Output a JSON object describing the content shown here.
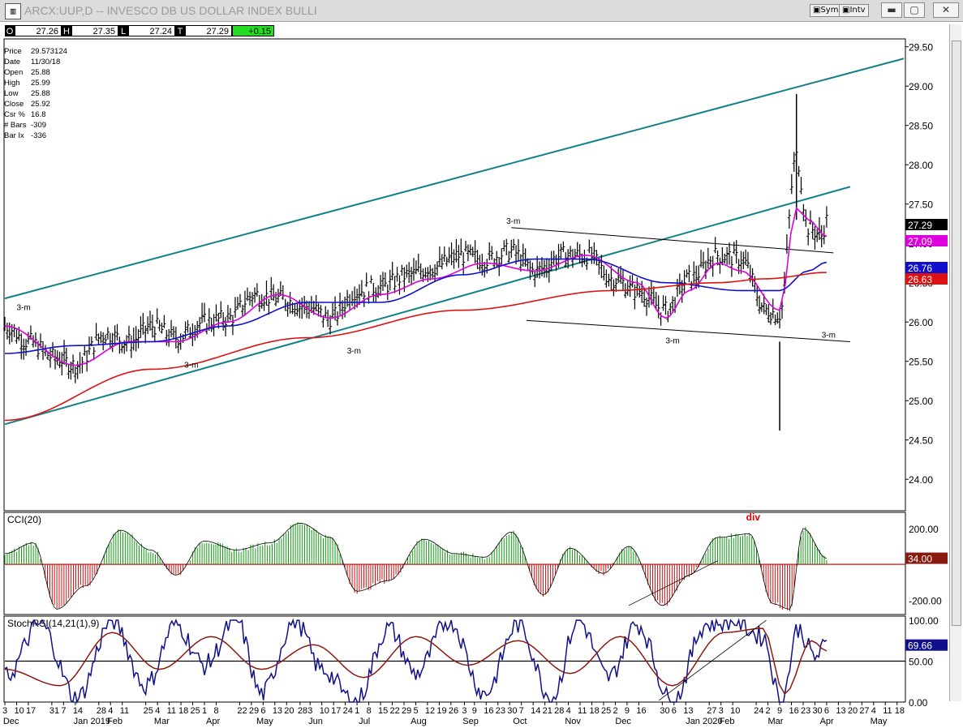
{
  "window": {
    "icon_glyph": "▥",
    "title": "ARCX:UUP,D -- INVESCO DB US DOLLAR INDEX BULLI",
    "sym_label": "Sym",
    "intv_label": "Intv",
    "minimize_glyph": "▬",
    "restore_glyph": "▢",
    "close_glyph": "✕"
  },
  "ohlc_bar": {
    "o_key": "O",
    "o_val": "27.26",
    "h_key": "H",
    "h_val": "27.35",
    "l_key": "L",
    "l_val": "27.24",
    "t_key": "T",
    "t_val": "27.29",
    "change": "+0.15"
  },
  "info_panel": [
    {
      "label": "Price",
      "value": "29.573124"
    },
    {
      "label": "Date",
      "value": "11/30/18"
    },
    {
      "label": "Open",
      "value": "25.88"
    },
    {
      "label": "High",
      "value": "25.99"
    },
    {
      "label": "Low",
      "value": "25.88"
    },
    {
      "label": "Close",
      "value": "25.92"
    },
    {
      "label": "Csr %",
      "value": "16.8"
    },
    {
      "label": "# Bars",
      "value": "-309"
    },
    {
      "label": "Bar Ix",
      "value": "-336"
    }
  ],
  "colors": {
    "price_bars": "#000000",
    "ma_fast": "#dd00dd",
    "ma_mid": "#1010cc",
    "ma_slow": "#dd1111",
    "channel": "#11808a",
    "cci_pos": "#119911",
    "cci_neg": "#cc1111",
    "stoch": "#10108a",
    "stoch_signal": "#8a1a10"
  },
  "chart_data": [
    {
      "type": "line",
      "panel": "price",
      "title": "ARCX:UUP,D -- INVESCO DB US DOLLAR INDEX BULLI",
      "ylim": [
        23.6,
        29.6
      ],
      "y_ticks": [
        "24.00",
        "24.50",
        "25.00",
        "25.50",
        "26.00",
        "26.50",
        "27.00",
        "27.50",
        "28.00",
        "28.50",
        "29.00",
        "29.50"
      ],
      "x_ticks": [
        "3",
        "10",
        "17",
        "31",
        "7",
        "14",
        "28",
        "4",
        "11",
        "25",
        "4",
        "11",
        "18",
        "25",
        "1",
        "8",
        "22",
        "29",
        "6",
        "13",
        "20",
        "28",
        "3",
        "10",
        "17",
        "24",
        "1",
        "8",
        "15",
        "22",
        "29",
        "5",
        "12",
        "19",
        "26",
        "3",
        "9",
        "16",
        "23",
        "30",
        "7",
        "14",
        "21",
        "28",
        "4",
        "11",
        "18",
        "25",
        "2",
        "9",
        "16",
        "30",
        "6",
        "13",
        "27",
        "3",
        "10",
        "24",
        "2",
        "9",
        "16",
        "23",
        "30",
        "6",
        "13",
        "20",
        "27",
        "4",
        "11",
        "18"
      ],
      "x_months": [
        "Dec",
        "Jan 2019",
        "Feb",
        "Mar",
        "Apr",
        "May",
        "Jun",
        "Jul",
        "Aug",
        "Sep",
        "Oct",
        "Nov",
        "Dec",
        "Jan 2020",
        "Feb",
        "Mar",
        "Apr",
        "May"
      ],
      "x_domain": [
        "2018-12-03",
        "2020-05-22"
      ],
      "series": [
        {
          "name": "UUP daily bars",
          "kind": "ohlc",
          "x": [
            "2018-12-03",
            "2018-12-17",
            "2019-01-02",
            "2019-01-14",
            "2019-02-01",
            "2019-02-15",
            "2019-03-01",
            "2019-03-15",
            "2019-04-01",
            "2019-04-15",
            "2019-05-01",
            "2019-05-15",
            "2019-06-01",
            "2019-06-15",
            "2019-07-01",
            "2019-07-15",
            "2019-08-01",
            "2019-08-15",
            "2019-09-01",
            "2019-09-15",
            "2019-10-01",
            "2019-10-15",
            "2019-11-01",
            "2019-11-15",
            "2019-12-01",
            "2019-12-15",
            "2020-01-01",
            "2020-01-15",
            "2020-02-01",
            "2020-02-15",
            "2020-03-01",
            "2020-03-09",
            "2020-03-19",
            "2020-03-26",
            "2020-04-03",
            "2020-04-06"
          ],
          "close": [
            25.95,
            25.75,
            25.55,
            25.45,
            25.85,
            25.75,
            25.95,
            25.8,
            26.0,
            26.05,
            26.35,
            26.3,
            26.2,
            26.05,
            26.4,
            26.45,
            26.6,
            26.7,
            26.85,
            26.8,
            26.9,
            26.65,
            26.85,
            26.85,
            26.55,
            26.4,
            26.15,
            26.55,
            26.85,
            26.8,
            26.15,
            26.1,
            28.1,
            27.2,
            27.1,
            27.29
          ]
        },
        {
          "name": "fast MA",
          "color": "#dd00dd",
          "x": [
            "2018-12-03",
            "2019-01-14",
            "2019-02-15",
            "2019-03-15",
            "2019-04-15",
            "2019-05-15",
            "2019-06-15",
            "2019-07-15",
            "2019-08-15",
            "2019-09-15",
            "2019-10-15",
            "2019-11-15",
            "2019-12-15",
            "2020-01-01",
            "2020-01-15",
            "2020-02-01",
            "2020-02-15",
            "2020-03-09",
            "2020-03-19",
            "2020-03-26",
            "2020-04-06"
          ],
          "values": [
            25.95,
            25.45,
            25.75,
            25.75,
            26.0,
            26.35,
            26.05,
            26.35,
            26.55,
            26.75,
            26.65,
            26.85,
            26.5,
            26.05,
            26.4,
            26.75,
            26.65,
            26.15,
            27.45,
            27.3,
            27.09
          ]
        },
        {
          "name": "mid MA",
          "color": "#1010cc",
          "x": [
            "2018-12-03",
            "2019-01-14",
            "2019-03-01",
            "2019-04-15",
            "2019-06-01",
            "2019-07-15",
            "2019-09-01",
            "2019-10-15",
            "2019-11-15",
            "2020-01-01",
            "2020-02-15",
            "2020-03-09",
            "2020-03-26",
            "2020-04-06"
          ],
          "values": [
            25.6,
            25.7,
            25.75,
            25.95,
            26.25,
            26.25,
            26.6,
            26.8,
            26.8,
            26.5,
            26.4,
            26.4,
            26.65,
            26.76
          ]
        },
        {
          "name": "slow MA",
          "color": "#dd1111",
          "x": [
            "2018-12-03",
            "2019-03-01",
            "2019-06-01",
            "2019-09-01",
            "2019-12-01",
            "2020-02-01",
            "2020-03-01",
            "2020-04-06"
          ],
          "values": [
            24.75,
            25.4,
            25.8,
            26.15,
            26.4,
            26.5,
            26.55,
            26.63
          ]
        }
      ],
      "trendlines": [
        {
          "color": "#11808a",
          "from": [
            "2018-12-03",
            26.3
          ],
          "to": [
            "2020-05-22",
            29.35
          ]
        },
        {
          "color": "#11808a",
          "from": [
            "2018-12-03",
            24.7
          ],
          "to": [
            "2020-04-20",
            27.72
          ]
        },
        {
          "color": "#000000",
          "from": [
            "2019-10-01",
            27.2
          ],
          "to": [
            "2020-04-10",
            26.88
          ]
        },
        {
          "color": "#000000",
          "from": [
            "2019-10-10",
            26.02
          ],
          "to": [
            "2020-04-20",
            25.75
          ]
        }
      ],
      "annotations": [
        {
          "text": "3-m",
          "x": "2018-12-10",
          "y": 26.15
        },
        {
          "text": "3-m",
          "x": "2019-03-20",
          "y": 25.42
        },
        {
          "text": "3-m",
          "x": "2019-06-25",
          "y": 25.6
        },
        {
          "text": "3-m",
          "x": "2019-09-28",
          "y": 27.25
        },
        {
          "text": "3-m",
          "x": "2020-01-01",
          "y": 25.73
        },
        {
          "text": "3-m",
          "x": "2020-04-03",
          "y": 25.8
        }
      ],
      "last_value_tags": [
        {
          "value": "27.29",
          "bg": "#000000",
          "fg": "#ffffff"
        },
        {
          "value": "27.09",
          "bg": "#dd00dd",
          "fg": "#ffffff"
        },
        {
          "value": "26.76",
          "bg": "#1010cc",
          "fg": "#ffffff"
        },
        {
          "value": "26.63",
          "bg": "#dd1111",
          "fg": "#ffffff"
        }
      ]
    },
    {
      "type": "bar",
      "panel": "cci",
      "title": "CCI(20)",
      "ylim": [
        -280,
        290
      ],
      "y_ticks": [
        "200.00",
        "-200.00"
      ],
      "last_value": "34.00",
      "annotation": {
        "text": "div",
        "color": "#dd0000"
      },
      "x": [
        "2018-12-03",
        "2018-12-20",
        "2019-01-03",
        "2019-01-20",
        "2019-02-10",
        "2019-02-28",
        "2019-03-15",
        "2019-04-01",
        "2019-04-20",
        "2019-05-10",
        "2019-05-28",
        "2019-06-15",
        "2019-07-01",
        "2019-07-20",
        "2019-08-10",
        "2019-08-28",
        "2019-09-15",
        "2019-10-01",
        "2019-10-20",
        "2019-11-05",
        "2019-11-25",
        "2019-12-10",
        "2019-12-30",
        "2020-01-15",
        "2020-02-01",
        "2020-02-20",
        "2020-03-05",
        "2020-03-15",
        "2020-03-23",
        "2020-04-06"
      ],
      "values": [
        60,
        120,
        -250,
        -120,
        190,
        80,
        -60,
        130,
        80,
        120,
        230,
        150,
        -150,
        -90,
        140,
        60,
        40,
        180,
        -170,
        90,
        -50,
        100,
        -230,
        -60,
        150,
        170,
        -220,
        -250,
        200,
        34
      ]
    },
    {
      "type": "line",
      "panel": "stochrsi",
      "title": "StochRSI(14,21(1),9)",
      "ylim": [
        0,
        105
      ],
      "y_ticks": [
        "100.00",
        "50.00",
        "0.00"
      ],
      "last_value": "69.66",
      "series": [
        {
          "name": "",
          "color": "#10108a",
          "x": [
            "2018-12-03",
            "2018-12-24",
            "2019-01-15",
            "2019-02-05",
            "2019-02-25",
            "2019-03-15",
            "2019-04-01",
            "2019-04-20",
            "2019-05-05",
            "2019-05-25",
            "2019-06-10",
            "2019-06-30",
            "2019-07-20",
            "2019-08-05",
            "2019-08-25",
            "2019-09-15",
            "2019-10-05",
            "2019-10-25",
            "2019-11-10",
            "2019-11-28",
            "2019-12-15",
            "2020-01-05",
            "2020-01-25",
            "2020-02-10",
            "2020-02-28",
            "2020-03-10",
            "2020-03-20",
            "2020-03-30",
            "2020-04-06"
          ],
          "values": [
            30,
            95,
            5,
            100,
            20,
            95,
            45,
            100,
            10,
            100,
            40,
            0,
            90,
            35,
            100,
            10,
            95,
            5,
            100,
            30,
            95,
            0,
            95,
            100,
            80,
            0,
            90,
            55,
            69.66
          ]
        },
        {
          "name": "",
          "color": "#8a1a10",
          "x": [
            "2018-12-03",
            "2019-01-05",
            "2019-02-05",
            "2019-03-05",
            "2019-04-05",
            "2019-05-05",
            "2019-06-05",
            "2019-07-05",
            "2019-08-05",
            "2019-09-05",
            "2019-10-05",
            "2019-11-05",
            "2019-12-05",
            "2020-01-05",
            "2020-02-05",
            "2020-02-28",
            "2020-03-12",
            "2020-03-28",
            "2020-04-06"
          ],
          "values": [
            40,
            20,
            85,
            40,
            80,
            40,
            70,
            30,
            80,
            45,
            75,
            35,
            80,
            20,
            85,
            90,
            10,
            75,
            62.5
          ]
        }
      ]
    }
  ]
}
